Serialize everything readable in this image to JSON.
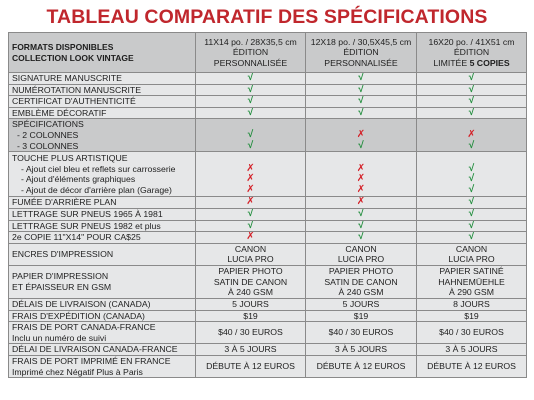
{
  "title": "TABLEAU COMPARATIF DES SPÉCIFICATIONS",
  "colors": {
    "title": "#c0272d",
    "check": "#1e8c3a",
    "cross": "#d41f26",
    "row_dark": "#c9cacb",
    "row_light": "#e6e7e8"
  },
  "header": {
    "label_lines": [
      "FORMATS DISPONIBLES",
      "COLLECTION LOOK VINTAGE"
    ],
    "cols": [
      {
        "size": "11X14 po. / 28X35,5 cm",
        "line2": "ÉDITION",
        "line3_pre": "PERSONNALISÉE",
        "line3_bold": ""
      },
      {
        "size": "12X18 po. / 30,5X45,5 cm",
        "line2": "ÉDITION",
        "line3_pre": "PERSONNALISÉE",
        "line3_bold": ""
      },
      {
        "size": "16X20 po. / 41X51 cm",
        "line2": "ÉDITION",
        "line3_pre": "LIMITÉE ",
        "line3_bold": "5 COPIES"
      }
    ]
  },
  "rows": [
    {
      "bg": "light",
      "lines": [
        "SIGNATURE MANUSCRITE"
      ],
      "cells": [
        [
          "check"
        ],
        [
          "check"
        ],
        [
          "check"
        ]
      ]
    },
    {
      "bg": "light",
      "lines": [
        "NUMÉROTATION MANUSCRITE"
      ],
      "cells": [
        [
          "check"
        ],
        [
          "check"
        ],
        [
          "check"
        ]
      ]
    },
    {
      "bg": "light",
      "lines": [
        "CERTIFICAT D'AUTHENTICITÉ"
      ],
      "cells": [
        [
          "check"
        ],
        [
          "check"
        ],
        [
          "check"
        ]
      ]
    },
    {
      "bg": "light",
      "lines": [
        "EMBLÈME DÉCORATIF"
      ],
      "cells": [
        [
          "check"
        ],
        [
          "check"
        ],
        [
          "check"
        ]
      ]
    },
    {
      "bg": "dark",
      "lines": [
        "SPÉCIFICATIONS",
        "- 2 COLONNES",
        "- 3 COLONNES"
      ],
      "cells": [
        [
          "",
          "check",
          "check"
        ],
        [
          "",
          "cross",
          "check"
        ],
        [
          "",
          "cross",
          "check"
        ]
      ]
    },
    {
      "bg": "light",
      "lines": [
        "TOUCHE PLUS ARTISTIQUE",
        "- Ajout ciel bleu et reflets sur carrosserie",
        "- Ajout d'éléments graphiques",
        "- Ajout de décor d'arrière plan (Garage)"
      ],
      "cells": [
        [
          "",
          "cross",
          "cross",
          "cross"
        ],
        [
          "",
          "cross",
          "cross",
          "cross"
        ],
        [
          "",
          "check",
          "check",
          "check"
        ]
      ]
    },
    {
      "bg": "light",
      "lines": [
        "FUMÉE D'ARRIÈRE PLAN"
      ],
      "cells": [
        [
          "cross"
        ],
        [
          "cross"
        ],
        [
          "check"
        ]
      ]
    },
    {
      "bg": "light",
      "lines": [
        "LETTRAGE SUR PNEUS 1965 À 1981"
      ],
      "cells": [
        [
          "check"
        ],
        [
          "check"
        ],
        [
          "check"
        ]
      ]
    },
    {
      "bg": "light",
      "lines": [
        "LETTRAGE SUR PNEUS 1982 et plus"
      ],
      "cells": [
        [
          "check"
        ],
        [
          "check"
        ],
        [
          "check"
        ]
      ]
    },
    {
      "bg": "light",
      "lines": [
        "2e COPIE 11\"X14\" POUR CA$25"
      ],
      "cells": [
        [
          "cross"
        ],
        [
          "check"
        ],
        [
          "check"
        ]
      ]
    },
    {
      "bg": "light",
      "lines": [
        "ENCRES D'IMPRESSION"
      ],
      "cells": [
        [
          "CANON",
          "LUCIA PRO"
        ],
        [
          "CANON",
          "LUCIA PRO"
        ],
        [
          "CANON",
          "LUCIA PRO"
        ]
      ]
    },
    {
      "bg": "light",
      "lines": [
        "PAPIER D'IMPRESSION",
        "ET ÉPAISSEUR EN GSM"
      ],
      "cells": [
        [
          "PAPIER PHOTO",
          "SATIN DE CANON",
          "À 240 GSM"
        ],
        [
          "PAPIER PHOTO",
          "SATIN DE CANON",
          "À 240 GSM"
        ],
        [
          "PAPIER SATINÉ",
          "HAHNEMÜEHLE",
          "À 290 GSM"
        ]
      ]
    },
    {
      "bg": "light",
      "lines": [
        "DÉLAIS DE LIVRAISON (CANADA)"
      ],
      "cells": [
        [
          "5 JOURS"
        ],
        [
          "5 JOURS"
        ],
        [
          "8 JOURS"
        ]
      ]
    },
    {
      "bg": "light",
      "lines": [
        "FRAIS D'EXPÉDITION (CANADA)"
      ],
      "cells": [
        [
          "$19"
        ],
        [
          "$19"
        ],
        [
          "$19"
        ]
      ]
    },
    {
      "bg": "light",
      "lines": [
        "FRAIS DE PORT CANADA-FRANCE",
        "Inclu un numéro de suivi"
      ],
      "cells": [
        [
          "$40 / 30 EUROS"
        ],
        [
          "$40 / 30 EUROS"
        ],
        [
          "$40 / 30 EUROS"
        ]
      ]
    },
    {
      "bg": "light",
      "lines": [
        "DÉLAI DE LIVRAISON CANADA-FRANCE"
      ],
      "cells": [
        [
          "3 À 5 JOURS"
        ],
        [
          "3 À 5 JOURS"
        ],
        [
          "3 À 5 JOURS"
        ]
      ]
    },
    {
      "bg": "light",
      "lines": [
        "FRAIS DE PORT IMPRIMÉ EN FRANCE",
        "Imprimé chez Négatif Plus à Paris"
      ],
      "cells": [
        [
          "DÉBUTE À 12 EUROS"
        ],
        [
          "DÉBUTE À 12 EUROS"
        ],
        [
          "DÉBUTE À 12 EUROS"
        ]
      ]
    }
  ]
}
